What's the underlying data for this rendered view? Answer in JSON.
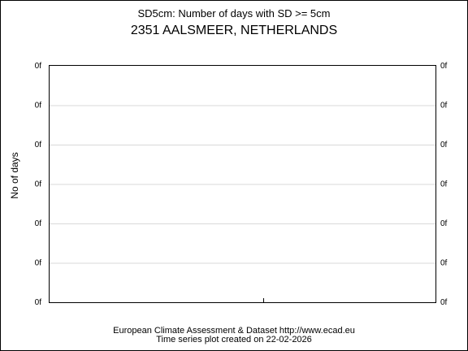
{
  "chart_data": {
    "type": "line",
    "title": "SD5cm: Number of days with SD >= 5cm",
    "subtitle": "2351 AALSMEER, NETHERLANDS",
    "ylabel": "No of days",
    "xlabel": "",
    "y_tick_labels": [
      "0f",
      "0f",
      "0f",
      "0f",
      "0f",
      "0f",
      "0f"
    ],
    "series": [],
    "grid": true,
    "legend": "none"
  },
  "footer": {
    "line1": "European Climate Assessment & Dataset  http://www.ecad.eu",
    "line2": "Time series plot created on 22-02-2026"
  },
  "colors": {
    "background": "#ffffff",
    "axis": "#000000",
    "grid": "#d9d9d9"
  }
}
